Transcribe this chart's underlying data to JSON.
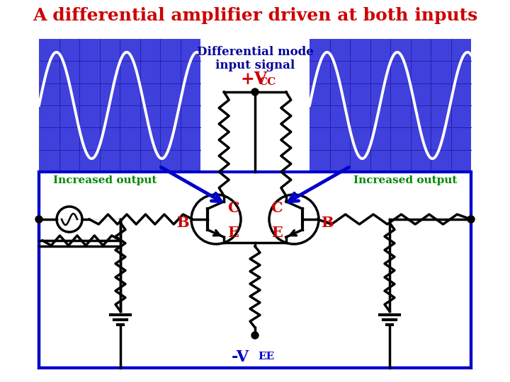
{
  "title": "A differential amplifier driven at both inputs",
  "title_color": "#cc0000",
  "title_fontsize": 18,
  "bg_color": "#ffffff",
  "osc_bg": "#4040dd",
  "osc_line_color": "#ffffff",
  "grid_color": "#2222aa",
  "label_diff_mode_1": "Differential mode",
  "label_diff_mode_2": "input signal",
  "label_vcc_main": "+V",
  "label_vcc_sub": "CC",
  "label_vee_main": "-V",
  "label_vee_sub": "EE",
  "label_increased_output": "Increased output",
  "label_increased_color": "#008800",
  "label_C": "C",
  "label_B": "B",
  "label_E": "E",
  "label_BCE_color": "#cc0000",
  "arrow_color": "#0000cc",
  "circuit_color": "#000000",
  "blue_border": "#0000cc",
  "diff_text_color": "#000099"
}
